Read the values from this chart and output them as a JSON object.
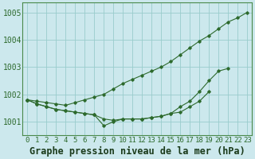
{
  "x": [
    0,
    1,
    2,
    3,
    4,
    5,
    6,
    7,
    8,
    9,
    10,
    11,
    12,
    13,
    14,
    15,
    16,
    17,
    18,
    19,
    20,
    21,
    22,
    23
  ],
  "line_upper": [
    1001.8,
    1001.75,
    1001.7,
    1001.65,
    1001.6,
    1001.7,
    1001.8,
    1001.9,
    1002.0,
    1002.2,
    1002.4,
    1002.55,
    1002.7,
    1002.85,
    1003.0,
    1003.2,
    1003.45,
    1003.7,
    1003.95,
    1004.15,
    1004.4,
    1004.65,
    1004.8,
    1005.0
  ],
  "line_mid": [
    1001.8,
    1001.65,
    1001.55,
    1001.45,
    1001.4,
    1001.35,
    1001.3,
    1001.25,
    1001.1,
    1001.05,
    1001.1,
    1001.1,
    1001.1,
    1001.15,
    1001.2,
    1001.3,
    1001.55,
    1001.75,
    1002.1,
    1002.5,
    1002.85,
    1002.95,
    null,
    null
  ],
  "line_lower": [
    1001.8,
    1001.65,
    1001.55,
    1001.45,
    1001.4,
    1001.35,
    1001.3,
    1001.25,
    1000.85,
    1001.0,
    1001.1,
    1001.1,
    1001.1,
    1001.15,
    1001.2,
    1001.3,
    1001.35,
    1001.55,
    1001.75,
    1002.1,
    null,
    null,
    null,
    null
  ],
  "background_color": "#cce8ed",
  "grid_color": "#99cccc",
  "line_color": "#2d6a2d",
  "title": "Graphe pression niveau de la mer (hPa)",
  "ylim_min": 1000.5,
  "ylim_max": 1005.35,
  "xlim_min": -0.5,
  "xlim_max": 23.5,
  "yticks": [
    1001,
    1002,
    1003,
    1004,
    1005
  ],
  "title_fontsize": 8.5,
  "tick_fontsize": 6.5
}
